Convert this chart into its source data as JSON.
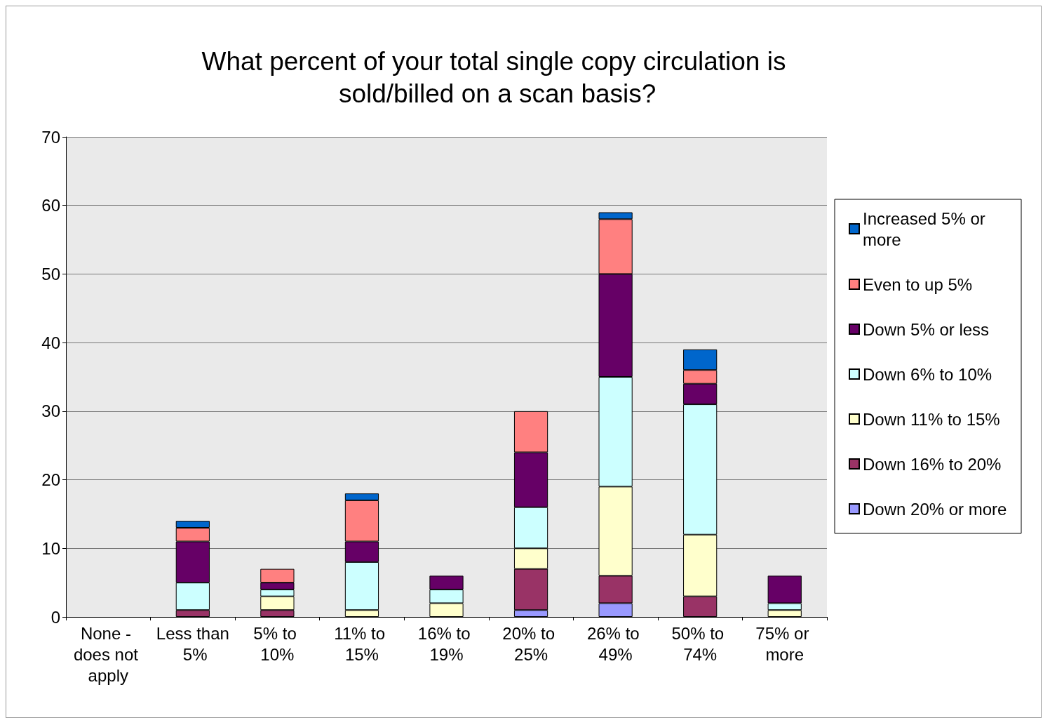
{
  "chart_data": {
    "type": "bar",
    "title": "What percent of your total single copy circulation is sold/billed on a scan basis?",
    "categories": [
      "None - does not apply",
      "Less than 5%",
      "5% to 10%",
      "11% to 15%",
      "16% to 19%",
      "20% to 25%",
      "26% to 49%",
      "50% to 74%",
      "75% or more"
    ],
    "stacked": true,
    "series": [
      {
        "name": "Down 20% or more",
        "color": "#9999ff",
        "values": [
          0,
          0,
          0,
          0,
          0,
          1,
          2,
          0,
          0
        ]
      },
      {
        "name": "Down 16% to 20%",
        "color": "#993366",
        "values": [
          0,
          1,
          1,
          0,
          0,
          6,
          4,
          3,
          0
        ]
      },
      {
        "name": "Down 11% to 15%",
        "color": "#ffffcc",
        "values": [
          0,
          0,
          2,
          1,
          2,
          3,
          13,
          9,
          1
        ]
      },
      {
        "name": "Down 6% to 10%",
        "color": "#ccffff",
        "values": [
          0,
          4,
          1,
          7,
          2,
          6,
          16,
          19,
          1
        ]
      },
      {
        "name": "Down 5% or less",
        "color": "#660066",
        "values": [
          0,
          6,
          1,
          3,
          2,
          8,
          15,
          3,
          4
        ]
      },
      {
        "name": "Even to up 5%",
        "color": "#ff8080",
        "values": [
          0,
          2,
          2,
          6,
          0,
          6,
          8,
          2,
          0
        ]
      },
      {
        "name": "Increased 5% or more",
        "color": "#0066cc",
        "values": [
          0,
          1,
          0,
          1,
          0,
          0,
          1,
          3,
          0
        ]
      }
    ],
    "ylim": [
      0,
      70
    ],
    "yticks": [
      0,
      10,
      20,
      30,
      40,
      50,
      60,
      70
    ],
    "grid": "y",
    "legend": "right"
  }
}
